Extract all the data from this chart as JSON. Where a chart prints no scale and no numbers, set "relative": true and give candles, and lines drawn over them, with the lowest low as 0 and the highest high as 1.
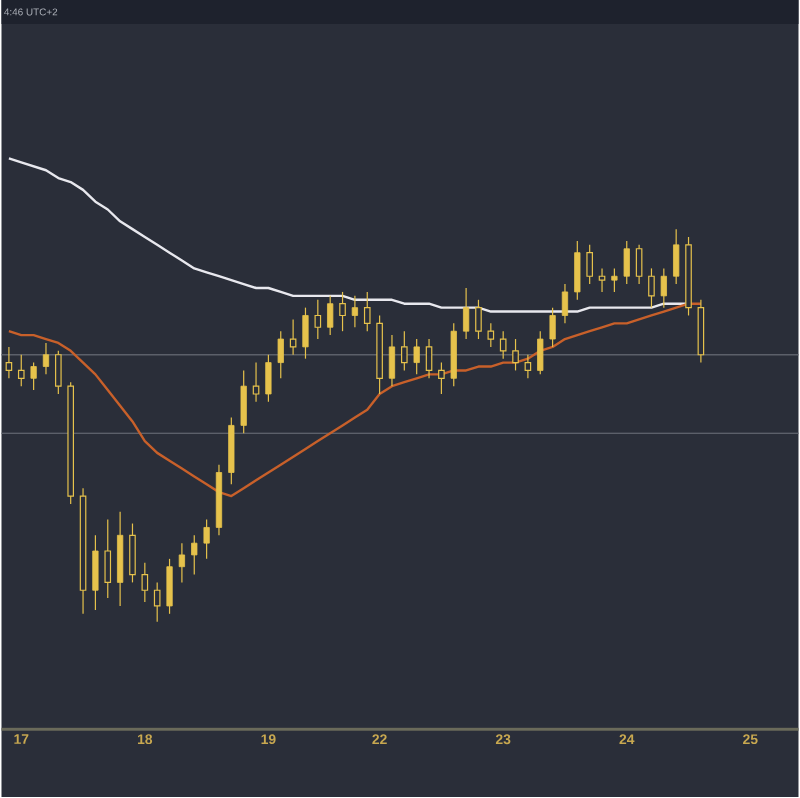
{
  "chart_data": {
    "type": "candlestick",
    "relative": true,
    "color": "#e6c24c",
    "categories": [
      null,
      "17",
      null,
      null,
      null,
      null,
      null,
      null,
      null,
      null,
      null,
      "18",
      null,
      null,
      null,
      null,
      null,
      null,
      null,
      null,
      null,
      "19",
      null,
      null,
      null,
      null,
      null,
      null,
      null,
      null,
      "22",
      null,
      null,
      null,
      null,
      null,
      null,
      null,
      null,
      null,
      "23",
      null,
      null,
      null,
      null,
      null,
      null,
      null,
      null,
      null,
      "24",
      null,
      null,
      null,
      null,
      null,
      null,
      null,
      null,
      null,
      "25",
      null,
      null,
      null
    ],
    "ohlc": [
      [
        0.66,
        0.7,
        0.62,
        0.64
      ],
      [
        0.64,
        0.68,
        0.6,
        0.62
      ],
      [
        0.62,
        0.66,
        0.59,
        0.65
      ],
      [
        0.65,
        0.71,
        0.63,
        0.68
      ],
      [
        0.68,
        0.69,
        0.58,
        0.6
      ],
      [
        0.6,
        0.61,
        0.3,
        0.32
      ],
      [
        0.32,
        0.34,
        0.02,
        0.08
      ],
      [
        0.08,
        0.22,
        0.03,
        0.18
      ],
      [
        0.18,
        0.26,
        0.06,
        0.1
      ],
      [
        0.1,
        0.28,
        0.04,
        0.22
      ],
      [
        0.22,
        0.25,
        0.1,
        0.12
      ],
      [
        0.12,
        0.15,
        0.05,
        0.08
      ],
      [
        0.08,
        0.1,
        0.0,
        0.04
      ],
      [
        0.04,
        0.16,
        0.02,
        0.14
      ],
      [
        0.14,
        0.2,
        0.1,
        0.17
      ],
      [
        0.17,
        0.22,
        0.12,
        0.2
      ],
      [
        0.2,
        0.26,
        0.16,
        0.24
      ],
      [
        0.24,
        0.4,
        0.22,
        0.38
      ],
      [
        0.38,
        0.52,
        0.35,
        0.5
      ],
      [
        0.5,
        0.64,
        0.48,
        0.6
      ],
      [
        0.6,
        0.66,
        0.56,
        0.58
      ],
      [
        0.58,
        0.68,
        0.56,
        0.66
      ],
      [
        0.66,
        0.74,
        0.62,
        0.72
      ],
      [
        0.72,
        0.77,
        0.68,
        0.7
      ],
      [
        0.7,
        0.8,
        0.67,
        0.78
      ],
      [
        0.78,
        0.82,
        0.72,
        0.75
      ],
      [
        0.75,
        0.83,
        0.73,
        0.81
      ],
      [
        0.81,
        0.84,
        0.74,
        0.78
      ],
      [
        0.78,
        0.83,
        0.75,
        0.8
      ],
      [
        0.8,
        0.84,
        0.74,
        0.76
      ],
      [
        0.76,
        0.78,
        0.58,
        0.62
      ],
      [
        0.62,
        0.73,
        0.6,
        0.7
      ],
      [
        0.7,
        0.74,
        0.64,
        0.66
      ],
      [
        0.66,
        0.72,
        0.63,
        0.7
      ],
      [
        0.7,
        0.72,
        0.62,
        0.64
      ],
      [
        0.64,
        0.66,
        0.58,
        0.62
      ],
      [
        0.62,
        0.76,
        0.6,
        0.74
      ],
      [
        0.74,
        0.85,
        0.72,
        0.8
      ],
      [
        0.8,
        0.82,
        0.72,
        0.74
      ],
      [
        0.74,
        0.76,
        0.7,
        0.72
      ],
      [
        0.72,
        0.74,
        0.67,
        0.69
      ],
      [
        0.69,
        0.72,
        0.64,
        0.66
      ],
      [
        0.66,
        0.68,
        0.62,
        0.64
      ],
      [
        0.64,
        0.74,
        0.63,
        0.72
      ],
      [
        0.72,
        0.8,
        0.7,
        0.78
      ],
      [
        0.78,
        0.86,
        0.76,
        0.84
      ],
      [
        0.84,
        0.97,
        0.82,
        0.94
      ],
      [
        0.94,
        0.96,
        0.86,
        0.88
      ],
      [
        0.88,
        0.9,
        0.84,
        0.87
      ],
      [
        0.87,
        0.9,
        0.84,
        0.88
      ],
      [
        0.88,
        0.97,
        0.86,
        0.95
      ],
      [
        0.95,
        0.96,
        0.86,
        0.88
      ],
      [
        0.88,
        0.9,
        0.8,
        0.83
      ],
      [
        0.83,
        0.9,
        0.8,
        0.88
      ],
      [
        0.88,
        1.0,
        0.86,
        0.96
      ],
      [
        0.96,
        0.98,
        0.78,
        0.8
      ],
      [
        0.8,
        0.82,
        0.66,
        0.68
      ],
      null,
      null,
      null,
      null,
      null,
      null,
      null
    ],
    "series": [
      {
        "type": "line",
        "color": "#e8e8ee",
        "values": [
          1.18,
          1.17,
          1.16,
          1.15,
          1.13,
          1.12,
          1.1,
          1.07,
          1.05,
          1.02,
          1.0,
          0.98,
          0.96,
          0.94,
          0.92,
          0.9,
          0.89,
          0.88,
          0.87,
          0.86,
          0.85,
          0.85,
          0.84,
          0.83,
          0.83,
          0.83,
          0.83,
          0.83,
          0.82,
          0.82,
          0.82,
          0.82,
          0.81,
          0.81,
          0.81,
          0.8,
          0.8,
          0.8,
          0.8,
          0.79,
          0.79,
          0.79,
          0.79,
          0.79,
          0.79,
          0.79,
          0.79,
          0.8,
          0.8,
          0.8,
          0.8,
          0.8,
          0.8,
          0.81,
          0.81,
          0.81,
          null,
          null,
          null,
          null,
          null,
          null,
          null,
          null
        ]
      },
      {
        "type": "line",
        "color": "#c8602a",
        "values": [
          0.74,
          0.73,
          0.73,
          0.72,
          0.71,
          0.69,
          0.66,
          0.63,
          0.59,
          0.55,
          0.51,
          0.46,
          0.43,
          0.41,
          0.39,
          0.37,
          0.35,
          0.33,
          0.32,
          0.34,
          0.36,
          0.38,
          0.4,
          0.42,
          0.44,
          0.46,
          0.48,
          0.5,
          0.52,
          0.54,
          0.58,
          0.6,
          0.61,
          0.62,
          0.63,
          0.63,
          0.64,
          0.64,
          0.65,
          0.65,
          0.66,
          0.66,
          0.67,
          0.69,
          0.7,
          0.72,
          0.73,
          0.74,
          0.75,
          0.76,
          0.76,
          0.77,
          0.78,
          0.79,
          0.8,
          0.81,
          0.81,
          null,
          null,
          null,
          null,
          null,
          null,
          null
        ]
      }
    ],
    "ref_lines": [
      {
        "axis": "y",
        "value": 0.68,
        "color": "#5c606a"
      },
      {
        "axis": "y",
        "value": 0.48,
        "color": "#5c606a"
      }
    ],
    "annotations": [
      "4:46 UTC+2"
    ]
  }
}
